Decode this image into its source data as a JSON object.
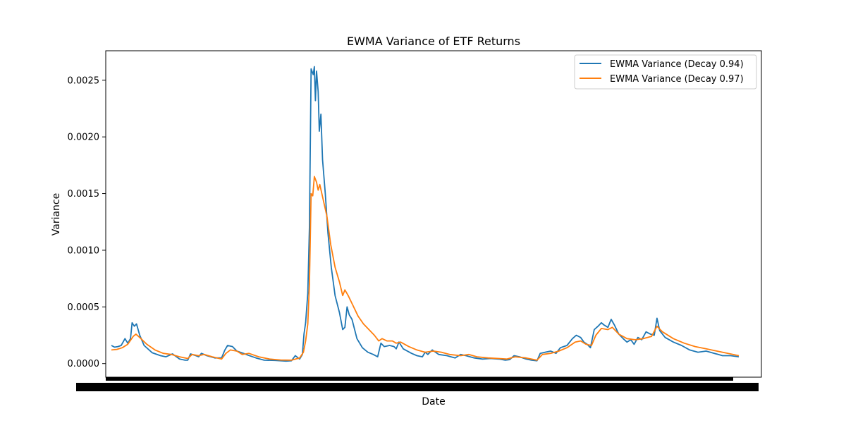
{
  "chart_data": {
    "type": "line",
    "title": "EWMA Variance of ETF Returns",
    "xlabel": "Date",
    "ylabel": "Variance",
    "ylim": [
      -0.00012,
      0.00276
    ],
    "y_ticks": [
      0.0,
      0.0005,
      0.001,
      0.0015,
      0.002,
      0.0025
    ],
    "y_tick_labels": [
      "0.0000",
      "0.0005",
      "0.0010",
      "0.0015",
      "0.0020",
      "0.0025"
    ],
    "x_index_range": [
      0,
      999
    ],
    "x_tick_labels_note": "overlapping illegible date labels",
    "legend_position": "upper right",
    "grid": false,
    "series": [
      {
        "name": "EWMA Variance (Decay 0.94)",
        "color": "#1f77b4",
        "points": [
          [
            0,
            0.00016
          ],
          [
            6,
            0.000145
          ],
          [
            12,
            0.00015
          ],
          [
            18,
            0.00016
          ],
          [
            25,
            0.00022
          ],
          [
            30,
            0.00018
          ],
          [
            35,
            0.00022
          ],
          [
            38,
            0.00036
          ],
          [
            42,
            0.00033
          ],
          [
            46,
            0.00035
          ],
          [
            52,
            0.00025
          ],
          [
            60,
            0.00016
          ],
          [
            75,
            9.5e-05
          ],
          [
            90,
            7e-05
          ],
          [
            100,
            6e-05
          ],
          [
            112,
            8.5e-05
          ],
          [
            125,
            4e-05
          ],
          [
            135,
            3e-05
          ],
          [
            140,
            3e-05
          ],
          [
            145,
            8.5e-05
          ],
          [
            155,
            7e-05
          ],
          [
            160,
            6e-05
          ],
          [
            165,
            9e-05
          ],
          [
            175,
            7e-05
          ],
          [
            190,
            5e-05
          ],
          [
            202,
            5e-05
          ],
          [
            208,
            0.00012
          ],
          [
            213,
            0.00016
          ],
          [
            222,
            0.00015
          ],
          [
            230,
            0.00011
          ],
          [
            242,
            9e-05
          ],
          [
            250,
            7.5e-05
          ],
          [
            265,
            5e-05
          ],
          [
            280,
            3e-05
          ],
          [
            300,
            2.8e-05
          ],
          [
            320,
            2.2e-05
          ],
          [
            330,
            2.5e-05
          ],
          [
            337,
            7e-05
          ],
          [
            345,
            4e-05
          ],
          [
            350,
            8e-05
          ],
          [
            353,
            0.00026
          ],
          [
            356,
            0.00036
          ],
          [
            360,
            0.00062
          ],
          [
            363,
            0.0012
          ],
          [
            366,
            0.0026
          ],
          [
            370,
            0.00255
          ],
          [
            372,
            0.00262
          ],
          [
            374,
            0.00232
          ],
          [
            376,
            0.00258
          ],
          [
            379,
            0.0024
          ],
          [
            381,
            0.00205
          ],
          [
            384,
            0.0022
          ],
          [
            387,
            0.0018
          ],
          [
            392,
            0.0015
          ],
          [
            397,
            0.00115
          ],
          [
            403,
            0.00085
          ],
          [
            410,
            0.0006
          ],
          [
            418,
            0.00045
          ],
          [
            424,
            0.0003
          ],
          [
            428,
            0.00032
          ],
          [
            432,
            0.0005
          ],
          [
            436,
            0.00043
          ],
          [
            441,
            0.00039
          ],
          [
            450,
            0.00022
          ],
          [
            460,
            0.00014
          ],
          [
            470,
            0.0001
          ],
          [
            480,
            8e-05
          ],
          [
            488,
            6e-05
          ],
          [
            494,
            0.00018
          ],
          [
            500,
            0.00015
          ],
          [
            510,
            0.00016
          ],
          [
            518,
            0.00015
          ],
          [
            522,
            0.00013
          ],
          [
            527,
            0.00019
          ],
          [
            535,
            0.00013
          ],
          [
            550,
            9e-05
          ],
          [
            560,
            7e-05
          ],
          [
            570,
            6e-05
          ],
          [
            575,
            0.0001
          ],
          [
            580,
            8e-05
          ],
          [
            588,
            0.00012
          ],
          [
            600,
            8e-05
          ],
          [
            615,
            7e-05
          ],
          [
            630,
            5e-05
          ],
          [
            640,
            8e-05
          ],
          [
            650,
            7e-05
          ],
          [
            665,
            5e-05
          ],
          [
            680,
            4e-05
          ],
          [
            695,
            4.5e-05
          ],
          [
            710,
            4e-05
          ],
          [
            722,
            3e-05
          ],
          [
            730,
            3.5e-05
          ],
          [
            738,
            7e-05
          ],
          [
            748,
            6e-05
          ],
          [
            760,
            4e-05
          ],
          [
            770,
            3e-05
          ],
          [
            780,
            2.5e-05
          ],
          [
            786,
            9e-05
          ],
          [
            795,
            0.0001
          ],
          [
            805,
            0.00011
          ],
          [
            815,
            9e-05
          ],
          [
            823,
            0.00014
          ],
          [
            835,
            0.00016
          ],
          [
            845,
            0.00022
          ],
          [
            852,
            0.00025
          ],
          [
            860,
            0.00023
          ],
          [
            866,
            0.00019
          ],
          [
            872,
            0.00017
          ],
          [
            878,
            0.00014
          ],
          [
            885,
            0.0003
          ],
          [
            892,
            0.00033
          ],
          [
            898,
            0.00036
          ],
          [
            903,
            0.00034
          ],
          [
            910,
            0.00032
          ],
          [
            916,
            0.00039
          ],
          [
            922,
            0.00034
          ],
          [
            930,
            0.00026
          ],
          [
            938,
            0.00022
          ],
          [
            945,
            0.00019
          ],
          [
            952,
            0.00021
          ],
          [
            958,
            0.00017
          ],
          [
            965,
            0.00023
          ],
          [
            972,
            0.00021
          ],
          [
            980,
            0.00028
          ],
          [
            988,
            0.00026
          ],
          [
            995,
            0.00025
          ],
          [
            1000,
            0.0004
          ],
          [
            1005,
            0.00029
          ],
          [
            1015,
            0.00023
          ],
          [
            1030,
            0.00019
          ],
          [
            1045,
            0.00016
          ],
          [
            1060,
            0.00012
          ],
          [
            1075,
            0.0001
          ],
          [
            1090,
            0.00011
          ],
          [
            1105,
            9e-05
          ],
          [
            1120,
            7e-05
          ],
          [
            1135,
            7e-05
          ],
          [
            1150,
            6e-05
          ]
        ]
      },
      {
        "name": "EWMA Variance (Decay 0.97)",
        "color": "#ff7f0e",
        "points": [
          [
            0,
            0.00012
          ],
          [
            10,
            0.000125
          ],
          [
            20,
            0.00014
          ],
          [
            30,
            0.00017
          ],
          [
            40,
            0.00024
          ],
          [
            45,
            0.00026
          ],
          [
            52,
            0.00023
          ],
          [
            65,
            0.00017
          ],
          [
            80,
            0.00012
          ],
          [
            95,
            9e-05
          ],
          [
            110,
            8e-05
          ],
          [
            125,
            6e-05
          ],
          [
            140,
            4.5e-05
          ],
          [
            148,
            8e-05
          ],
          [
            160,
            7e-05
          ],
          [
            170,
            8e-05
          ],
          [
            185,
            6e-05
          ],
          [
            202,
            4e-05
          ],
          [
            210,
            9e-05
          ],
          [
            218,
            0.00012
          ],
          [
            230,
            0.00011
          ],
          [
            240,
            8e-05
          ],
          [
            252,
            9e-05
          ],
          [
            270,
            6e-05
          ],
          [
            290,
            4e-05
          ],
          [
            310,
            3.2e-05
          ],
          [
            330,
            3e-05
          ],
          [
            345,
            5e-05
          ],
          [
            352,
            0.0001
          ],
          [
            356,
            0.0002
          ],
          [
            360,
            0.00035
          ],
          [
            363,
            0.0007
          ],
          [
            366,
            0.0015
          ],
          [
            369,
            0.00148
          ],
          [
            372,
            0.00165
          ],
          [
            376,
            0.0016
          ],
          [
            379,
            0.00153
          ],
          [
            382,
            0.00158
          ],
          [
            388,
            0.00145
          ],
          [
            395,
            0.0013
          ],
          [
            402,
            0.00105
          ],
          [
            410,
            0.00085
          ],
          [
            418,
            0.00072
          ],
          [
            424,
            0.0006
          ],
          [
            428,
            0.00065
          ],
          [
            434,
            0.0006
          ],
          [
            442,
            0.00052
          ],
          [
            452,
            0.00042
          ],
          [
            462,
            0.00035
          ],
          [
            472,
            0.0003
          ],
          [
            482,
            0.00025
          ],
          [
            490,
            0.0002
          ],
          [
            496,
            0.00022
          ],
          [
            505,
            0.0002
          ],
          [
            515,
            0.0002
          ],
          [
            522,
            0.00018
          ],
          [
            530,
            0.00019
          ],
          [
            545,
            0.00015
          ],
          [
            560,
            0.00012
          ],
          [
            575,
            0.0001
          ],
          [
            590,
            0.00011
          ],
          [
            605,
            0.0001
          ],
          [
            620,
            8e-05
          ],
          [
            640,
            7e-05
          ],
          [
            655,
            8e-05
          ],
          [
            670,
            6e-05
          ],
          [
            690,
            5e-05
          ],
          [
            710,
            4.5e-05
          ],
          [
            725,
            4e-05
          ],
          [
            740,
            6e-05
          ],
          [
            760,
            5e-05
          ],
          [
            780,
            3e-05
          ],
          [
            790,
            8e-05
          ],
          [
            805,
            9e-05
          ],
          [
            820,
            0.00011
          ],
          [
            835,
            0.00014
          ],
          [
            850,
            0.00019
          ],
          [
            860,
            0.0002
          ],
          [
            870,
            0.00017
          ],
          [
            880,
            0.00016
          ],
          [
            888,
            0.00025
          ],
          [
            898,
            0.00031
          ],
          [
            910,
            0.0003
          ],
          [
            918,
            0.00032
          ],
          [
            930,
            0.00026
          ],
          [
            945,
            0.00022
          ],
          [
            960,
            0.00021
          ],
          [
            975,
            0.00022
          ],
          [
            990,
            0.00024
          ],
          [
            1000,
            0.00033
          ],
          [
            1010,
            0.00028
          ],
          [
            1030,
            0.00022
          ],
          [
            1050,
            0.00018
          ],
          [
            1070,
            0.00015
          ],
          [
            1090,
            0.00013
          ],
          [
            1110,
            0.00011
          ],
          [
            1130,
            9e-05
          ],
          [
            1150,
            7e-05
          ]
        ]
      }
    ]
  }
}
